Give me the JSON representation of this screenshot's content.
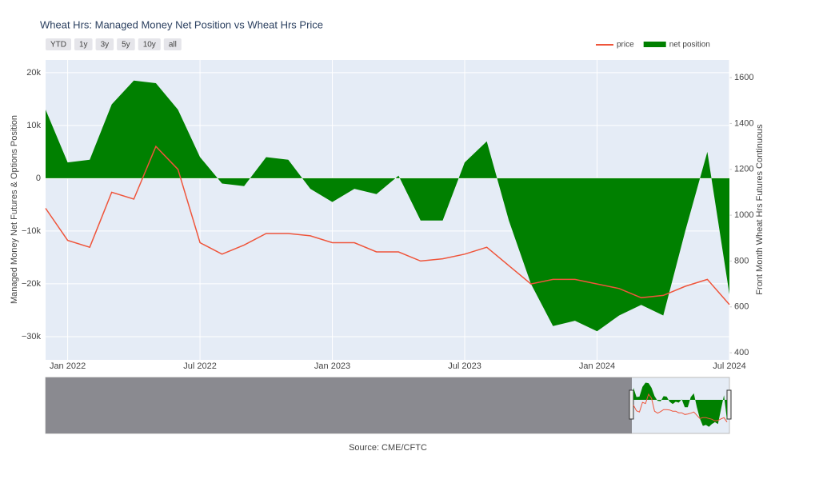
{
  "chart_data": {
    "type": "line",
    "title": "Wheat Hrs: Managed Money Net Position vs Wheat Hrs Price",
    "y_label": "Managed Money Net Futures & Options Position",
    "y2_label": "Front Month Wheat Hrs Futures Continuous",
    "source": "Source: CME/CFTC",
    "range_buttons": [
      "YTD",
      "1y",
      "3y",
      "5y",
      "10y",
      "all"
    ],
    "x": [
      "2021-12",
      "2022-01",
      "2022-02",
      "2022-03",
      "2022-04",
      "2022-05",
      "2022-06",
      "2022-07",
      "2022-08",
      "2022-09",
      "2022-10",
      "2022-11",
      "2022-12",
      "2023-01",
      "2023-02",
      "2023-03",
      "2023-04",
      "2023-05",
      "2023-06",
      "2023-07",
      "2023-08",
      "2023-09",
      "2023-10",
      "2023-11",
      "2023-12",
      "2024-01",
      "2024-02",
      "2024-03",
      "2024-04",
      "2024-05",
      "2024-06",
      "2024-07"
    ],
    "series": [
      {
        "name": "price",
        "color": "#ef553b",
        "kind": "line",
        "axis": "y2",
        "values": [
          1030,
          890,
          860,
          1100,
          1070,
          1300,
          1200,
          880,
          830,
          870,
          920,
          920,
          910,
          880,
          880,
          840,
          840,
          800,
          810,
          830,
          860,
          780,
          700,
          720,
          720,
          700,
          680,
          640,
          650,
          690,
          720,
          610
        ]
      },
      {
        "name": "net position",
        "color": "#008000",
        "kind": "area",
        "values": [
          13000,
          3000,
          3500,
          14000,
          18500,
          18000,
          13000,
          4000,
          -1000,
          -1500,
          4000,
          3500,
          -2000,
          -4500,
          -2000,
          -3000,
          500,
          -8000,
          -8000,
          3000,
          7000,
          -8000,
          -20000,
          -28000,
          -27000,
          -29000,
          -26000,
          -24000,
          -26000,
          -10000,
          5000,
          -22000
        ]
      }
    ],
    "xlim": [
      "2021-12",
      "2024-07"
    ],
    "xticks": [
      {
        "value": "2022-01",
        "label": "Jan 2022"
      },
      {
        "value": "2022-07",
        "label": "Jul 2022"
      },
      {
        "value": "2023-01",
        "label": "Jan 2023"
      },
      {
        "value": "2023-07",
        "label": "Jul 2023"
      },
      {
        "value": "2024-01",
        "label": "Jan 2024"
      },
      {
        "value": "2024-07",
        "label": "Jul 2024"
      }
    ],
    "ylim": [
      -34400,
      22400
    ],
    "yticks": [
      {
        "value": -30000,
        "label": "−30k"
      },
      {
        "value": -20000,
        "label": "−20k"
      },
      {
        "value": -10000,
        "label": "−10k"
      },
      0,
      {
        "value": 10000,
        "label": "10k"
      },
      {
        "value": 20000,
        "label": "20k"
      }
    ],
    "y2lim": [
      369,
      1677
    ],
    "y2ticks": [
      400,
      600,
      800,
      1000,
      1200,
      1400,
      1600
    ],
    "grid": true,
    "legend": "top-right"
  }
}
